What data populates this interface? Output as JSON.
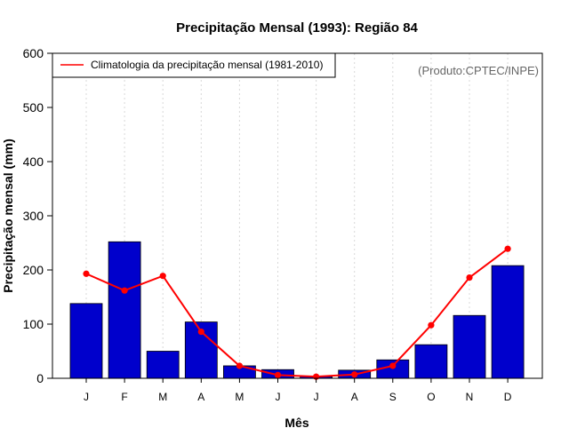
{
  "chart_data": {
    "type": "bar",
    "title": "Precipitação Mensal (1993): Região 84",
    "xlabel": "Mês",
    "ylabel": "Precipitação mensal (mm)",
    "ylim": [
      0,
      600
    ],
    "yticks": [
      "0",
      "100",
      "200",
      "300",
      "400",
      "500",
      "600"
    ],
    "categories": [
      "J",
      "F",
      "M",
      "A",
      "M",
      "J",
      "J",
      "A",
      "S",
      "O",
      "N",
      "D"
    ],
    "series": [
      {
        "name": "Precipitação mensal (1993)",
        "type": "bar",
        "color": "#0000cc",
        "values": [
          138,
          252,
          50,
          104,
          23,
          16,
          3,
          15,
          34,
          62,
          116,
          208
        ]
      },
      {
        "name": "Climatologia da precipitação mensal (1981-2010)",
        "type": "line",
        "color": "#ff0000",
        "values": [
          193,
          162,
          189,
          86,
          23,
          6,
          3,
          7,
          23,
          98,
          186,
          239
        ]
      }
    ],
    "legend": {
      "entries": [
        "Climatologia da precipitação mensal (1981-2010)"
      ],
      "position": "top-left"
    },
    "annotation": "(Produto:CPTEC/INPE)",
    "grid": "vertical-dotted"
  }
}
